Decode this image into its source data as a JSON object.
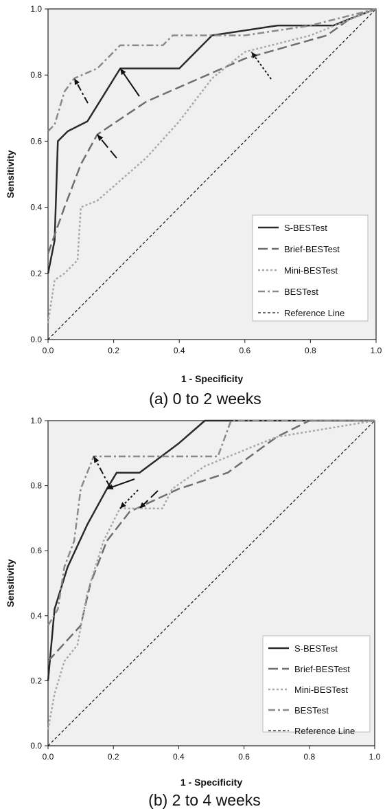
{
  "chart_data": [
    {
      "type": "line",
      "title": "",
      "caption": "(a) 0 to 2 weeks",
      "xlabel": "1 - Specificity",
      "ylabel": "Sensitivity",
      "xlim": [
        0,
        1
      ],
      "ylim": [
        0,
        1
      ],
      "xticks": [
        "0.0",
        "0.2",
        "0.4",
        "0.6",
        "0.8",
        "1.0"
      ],
      "yticks": [
        "0.0",
        "0.2",
        "0.4",
        "0.6",
        "0.8",
        "1.0"
      ],
      "grid": false,
      "legend_position": "bottom-right",
      "series": [
        {
          "name": "S-BESTest",
          "color": "#2a2a2a",
          "style": "solid",
          "points": [
            [
              0,
              0.2
            ],
            [
              0.02,
              0.3
            ],
            [
              0.03,
              0.6
            ],
            [
              0.06,
              0.63
            ],
            [
              0.12,
              0.66
            ],
            [
              0.22,
              0.82
            ],
            [
              0.4,
              0.82
            ],
            [
              0.5,
              0.92
            ],
            [
              0.7,
              0.95
            ],
            [
              0.87,
              0.95
            ],
            [
              0.92,
              0.97
            ],
            [
              1,
              1
            ]
          ]
        },
        {
          "name": "Brief-BESTest",
          "color": "#6e6e6e",
          "style": "longdash",
          "points": [
            [
              0,
              0.26
            ],
            [
              0.05,
              0.4
            ],
            [
              0.1,
              0.53
            ],
            [
              0.15,
              0.62
            ],
            [
              0.3,
              0.72
            ],
            [
              0.6,
              0.85
            ],
            [
              0.85,
              0.92
            ],
            [
              0.92,
              0.97
            ],
            [
              1,
              1
            ]
          ]
        },
        {
          "name": "Mini-BESTest",
          "color": "#a8a8a8",
          "style": "dotted",
          "points": [
            [
              0,
              0.05
            ],
            [
              0.02,
              0.18
            ],
            [
              0.05,
              0.2
            ],
            [
              0.09,
              0.24
            ],
            [
              0.1,
              0.4
            ],
            [
              0.15,
              0.42
            ],
            [
              0.3,
              0.55
            ],
            [
              0.4,
              0.66
            ],
            [
              0.5,
              0.79
            ],
            [
              0.6,
              0.87
            ],
            [
              0.8,
              0.92
            ],
            [
              1,
              1
            ]
          ]
        },
        {
          "name": "BESTest",
          "color": "#8a8a8a",
          "style": "dashdot",
          "points": [
            [
              0,
              0.63
            ],
            [
              0.02,
              0.65
            ],
            [
              0.05,
              0.75
            ],
            [
              0.08,
              0.79
            ],
            [
              0.15,
              0.82
            ],
            [
              0.22,
              0.89
            ],
            [
              0.35,
              0.89
            ],
            [
              0.38,
              0.92
            ],
            [
              0.6,
              0.92
            ],
            [
              0.8,
              0.95
            ],
            [
              1,
              1
            ]
          ]
        },
        {
          "name": "Reference Line",
          "color": "#111111",
          "style": "finedash",
          "points": [
            [
              0,
              0
            ],
            [
              1,
              1
            ]
          ]
        }
      ],
      "annotations": [
        {
          "type": "arrow",
          "target": [
            0.08,
            0.79
          ],
          "series": "BESTest"
        },
        {
          "type": "arrow",
          "target": [
            0.22,
            0.82
          ],
          "series": "S-BESTest"
        },
        {
          "type": "arrow",
          "target": [
            0.15,
            0.62
          ],
          "series": "Brief-BESTest"
        },
        {
          "type": "arrow",
          "target": [
            0.62,
            0.87
          ],
          "series": "Mini-BESTest"
        }
      ]
    },
    {
      "type": "line",
      "title": "",
      "caption": "(b) 2 to 4 weeks",
      "xlabel": "1 - Specificity",
      "ylabel": "Sensitivity",
      "xlim": [
        0,
        1
      ],
      "ylim": [
        0,
        1
      ],
      "xticks": [
        "0.0",
        "0.2",
        "0.4",
        "0.6",
        "0.8",
        "1.0"
      ],
      "yticks": [
        "0.0",
        "0.2",
        "0.4",
        "0.6",
        "0.8",
        "1.0"
      ],
      "grid": false,
      "legend_position": "bottom-right",
      "series": [
        {
          "name": "S-BESTest",
          "color": "#2a2a2a",
          "style": "solid",
          "points": [
            [
              0,
              0.2
            ],
            [
              0.02,
              0.42
            ],
            [
              0.06,
              0.55
            ],
            [
              0.12,
              0.68
            ],
            [
              0.18,
              0.79
            ],
            [
              0.21,
              0.84
            ],
            [
              0.28,
              0.84
            ],
            [
              0.4,
              0.93
            ],
            [
              0.48,
              1
            ],
            [
              1,
              1
            ]
          ]
        },
        {
          "name": "Brief-BESTest",
          "color": "#6e6e6e",
          "style": "longdash",
          "points": [
            [
              0,
              0.26
            ],
            [
              0.1,
              0.37
            ],
            [
              0.13,
              0.5
            ],
            [
              0.18,
              0.63
            ],
            [
              0.25,
              0.72
            ],
            [
              0.4,
              0.79
            ],
            [
              0.55,
              0.84
            ],
            [
              0.7,
              0.95
            ],
            [
              0.8,
              1
            ],
            [
              1,
              1
            ]
          ]
        },
        {
          "name": "Mini-BESTest",
          "color": "#a8a8a8",
          "style": "dotted",
          "points": [
            [
              0,
              0.05
            ],
            [
              0.02,
              0.16
            ],
            [
              0.05,
              0.26
            ],
            [
              0.09,
              0.31
            ],
            [
              0.12,
              0.47
            ],
            [
              0.17,
              0.63
            ],
            [
              0.22,
              0.73
            ],
            [
              0.35,
              0.73
            ],
            [
              0.38,
              0.79
            ],
            [
              0.48,
              0.86
            ],
            [
              0.7,
              0.95
            ],
            [
              1,
              1
            ]
          ]
        },
        {
          "name": "BESTest",
          "color": "#8a8a8a",
          "style": "dashdot",
          "points": [
            [
              0,
              0.37
            ],
            [
              0.03,
              0.42
            ],
            [
              0.05,
              0.55
            ],
            [
              0.08,
              0.63
            ],
            [
              0.1,
              0.79
            ],
            [
              0.12,
              0.84
            ],
            [
              0.14,
              0.89
            ],
            [
              0.52,
              0.89
            ],
            [
              0.56,
              1
            ],
            [
              1,
              1
            ]
          ]
        },
        {
          "name": "Reference Line",
          "color": "#111111",
          "style": "finedash",
          "points": [
            [
              0,
              0
            ],
            [
              1,
              1
            ]
          ]
        }
      ],
      "annotations": [
        {
          "type": "arrow",
          "target": [
            0.14,
            0.89
          ],
          "series": "BESTest"
        },
        {
          "type": "arrow",
          "target": [
            0.18,
            0.79
          ],
          "series": "S-BESTest"
        },
        {
          "type": "arrow",
          "target": [
            0.22,
            0.73
          ],
          "series": "Mini-BESTest"
        },
        {
          "type": "arrow",
          "target": [
            0.28,
            0.73
          ],
          "series": "Brief-BESTest"
        }
      ]
    }
  ]
}
